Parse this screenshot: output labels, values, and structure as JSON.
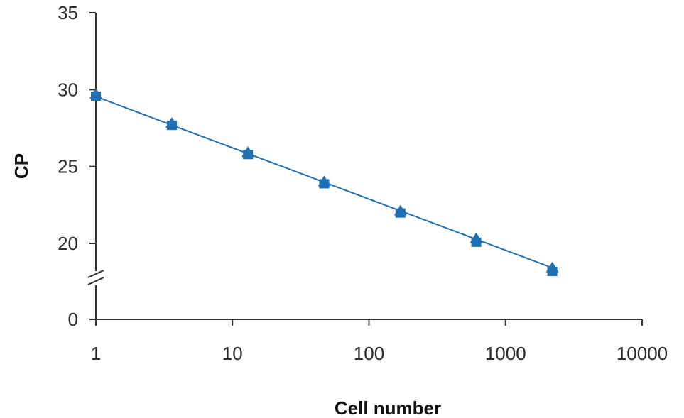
{
  "chart_data": {
    "type": "scatter",
    "title": "",
    "xlabel": "Cell number",
    "ylabel": "CP",
    "x_scale": "log",
    "xlim": [
      1,
      10000
    ],
    "x_ticks": [
      1,
      10,
      100,
      1000,
      10000
    ],
    "x_tick_labels": [
      "1",
      "10",
      "100",
      "1000",
      "10000"
    ],
    "y_ticks": [
      0,
      20,
      25,
      30,
      35
    ],
    "y_tick_labels": [
      "0",
      "20",
      "25",
      "30",
      "35"
    ],
    "y_axis_break": "between 0 and 20",
    "grid": false,
    "legend": "none",
    "series": [
      {
        "marker": "triangle",
        "color": "#1f6fb5",
        "x": [
          1,
          3.6,
          13,
          47,
          170,
          610,
          2200
        ],
        "y": [
          29.7,
          27.8,
          25.9,
          24.0,
          22.1,
          20.3,
          18.4
        ]
      },
      {
        "marker": "square",
        "color": "#1f6fb5",
        "x": [
          1,
          3.6,
          13,
          47,
          170,
          610,
          2200
        ],
        "y": [
          29.6,
          27.7,
          25.8,
          23.9,
          22.0,
          20.1,
          18.2
        ]
      }
    ],
    "trendline": {
      "type": "log-linear",
      "color": "#1f6fb5",
      "x": [
        1,
        2300
      ],
      "y": [
        29.55,
        18.35
      ]
    }
  }
}
